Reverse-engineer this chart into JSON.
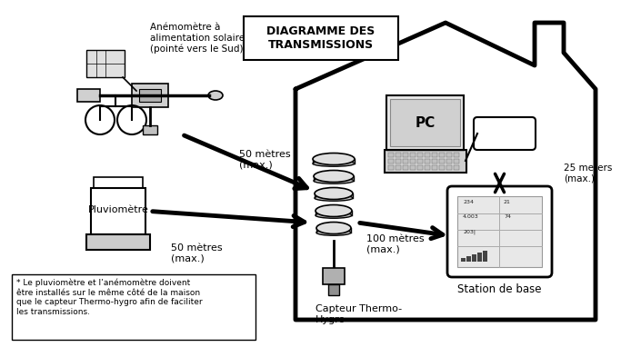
{
  "title": "DIAGRAMME DES\nTRANSMISSIONS",
  "bg_color": "#ffffff",
  "fg_color": "#000000",
  "label_anemometre": "Anémomètre à\nalimentation solaire\n(pointé vers le Sud)",
  "label_pluviometre": "Pluviomètre",
  "label_capteur": "Capteur Thermo-\nHygro",
  "label_station": "Station de base",
  "label_pc": "PC",
  "label_50m_top": "50 mètres\n(max.)",
  "label_50m_bot": "50 mètres\n(max.)",
  "label_100m": "100 mètres\n(max.)",
  "label_25m": "25 meters\n(max.)",
  "footnote": "* Le pluviomètre et l’anémomètre doivent\nêtre installés sur le même côté de la maison\nque le capteur Thermo-hygro afin de faciliter\nles transmissions."
}
